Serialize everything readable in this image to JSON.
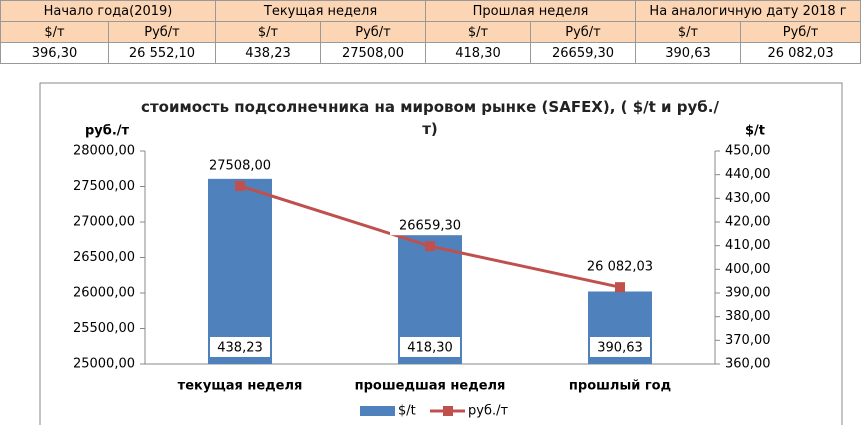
{
  "table": {
    "headers": [
      "Начало года(2019)",
      "Текущая неделя",
      "Прошлая неделя",
      "На аналогичную дату 2018 г"
    ],
    "units": [
      "$/т",
      "Руб/т",
      "$/т",
      "Руб/т",
      "$/т",
      "Руб/т",
      "$/т",
      "Руб/т"
    ],
    "values": [
      "396,30",
      "26 552,10",
      "438,23",
      "27508,00",
      "418,30",
      "26659,30",
      "390,63",
      "26 082,03"
    ]
  },
  "chart_data": {
    "type": "bar-line",
    "title": "стоимость подсолнечника на мировом рынке (SAFEX), ( $/t и руб./т)",
    "y_label": "руб./т",
    "y2_label": "$/t",
    "categories": [
      "текущая неделя",
      "прошедшая неделя",
      "прошлый год"
    ],
    "series": [
      {
        "name": "$/t",
        "type": "bar",
        "color": "#4f81bd",
        "axis": "y2",
        "values": [
          438.23,
          418.3,
          390.63
        ],
        "value_labels": [
          "438,23",
          "418,30",
          "390,63"
        ]
      },
      {
        "name": "руб./т",
        "type": "line",
        "color": "#c0504d",
        "axis": "y",
        "values": [
          27508,
          26659.3,
          26082.03
        ],
        "value_labels": [
          "27508,00",
          "26659,30",
          "26 082,03"
        ]
      }
    ],
    "ylim": [
      25000,
      28000
    ],
    "yticks": [
      {
        "value": 25000,
        "label": "25000,00"
      },
      {
        "value": 25500,
        "label": "25500,00"
      },
      {
        "value": 26000,
        "label": "26000,00"
      },
      {
        "value": 26500,
        "label": "26500,00"
      },
      {
        "value": 27000,
        "label": "27000,00"
      },
      {
        "value": 27500,
        "label": "27500,00"
      },
      {
        "value": 28000,
        "label": "28000,00"
      }
    ],
    "y2lim": [
      360,
      450
    ],
    "y2ticks": [
      {
        "value": 360,
        "label": "360,00"
      },
      {
        "value": 370,
        "label": "370,00"
      },
      {
        "value": 380,
        "label": "380,00"
      },
      {
        "value": 390,
        "label": "390,00"
      },
      {
        "value": 400,
        "label": "400,00"
      },
      {
        "value": 410,
        "label": "410,00"
      },
      {
        "value": 420,
        "label": "420,00"
      },
      {
        "value": 430,
        "label": "430,00"
      },
      {
        "value": 440,
        "label": "440,00"
      },
      {
        "value": 450,
        "label": "450,00"
      }
    ],
    "legend": "bottom"
  }
}
